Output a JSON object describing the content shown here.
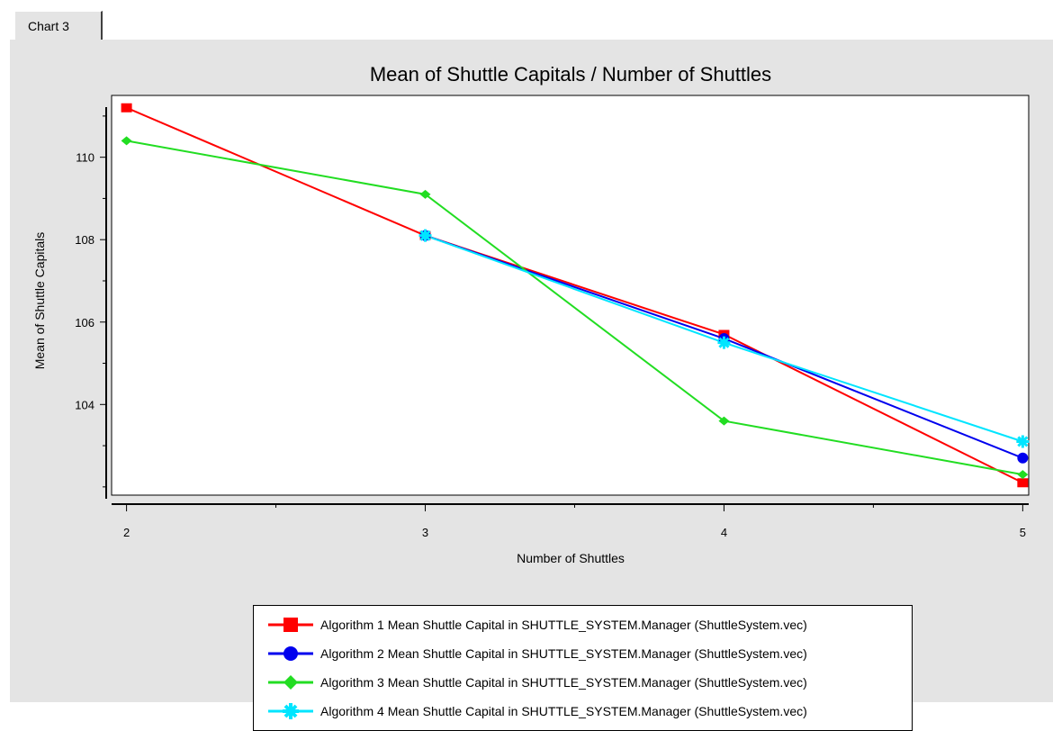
{
  "tab": {
    "label": "Chart 3"
  },
  "chart_data": {
    "type": "line",
    "title": "Mean of Shuttle Capitals / Number of Shuttles",
    "xlabel": "Number of Shuttles",
    "ylabel": "Mean of Shuttle Capitals",
    "x": [
      2,
      3,
      4,
      5
    ],
    "xlim": [
      1.95,
      5.02
    ],
    "ylim": [
      101.8,
      111.5
    ],
    "xticks": [
      2,
      3,
      4,
      5
    ],
    "yticks": [
      104,
      106,
      108,
      110
    ],
    "grid": false,
    "legend_position": "bottom",
    "series": [
      {
        "name": "Algorithm 1 Mean Shuttle Capital in SHUTTLE_SYSTEM.Manager (ShuttleSystem.vec)",
        "x": [
          2,
          3,
          4,
          5
        ],
        "values": [
          111.2,
          108.1,
          105.7,
          102.1
        ],
        "color": "#ff0000",
        "marker": "square"
      },
      {
        "name": "Algorithm 2 Mean Shuttle Capital in SHUTTLE_SYSTEM.Manager (ShuttleSystem.vec)",
        "x": [
          3,
          4,
          5
        ],
        "values": [
          108.1,
          105.6,
          102.7
        ],
        "color": "#0000ee",
        "marker": "circle"
      },
      {
        "name": "Algorithm 3 Mean Shuttle Capital in SHUTTLE_SYSTEM.Manager (ShuttleSystem.vec)",
        "x": [
          2,
          3,
          4,
          5
        ],
        "values": [
          110.4,
          109.1,
          103.6,
          102.3
        ],
        "color": "#22dd22",
        "marker": "diamond"
      },
      {
        "name": "Algorithm 4 Mean Shuttle Capital in SHUTTLE_SYSTEM.Manager (ShuttleSystem.vec)",
        "x": [
          3,
          4,
          5
        ],
        "values": [
          108.1,
          105.5,
          103.1
        ],
        "color": "#00e5ff",
        "marker": "star"
      }
    ]
  }
}
